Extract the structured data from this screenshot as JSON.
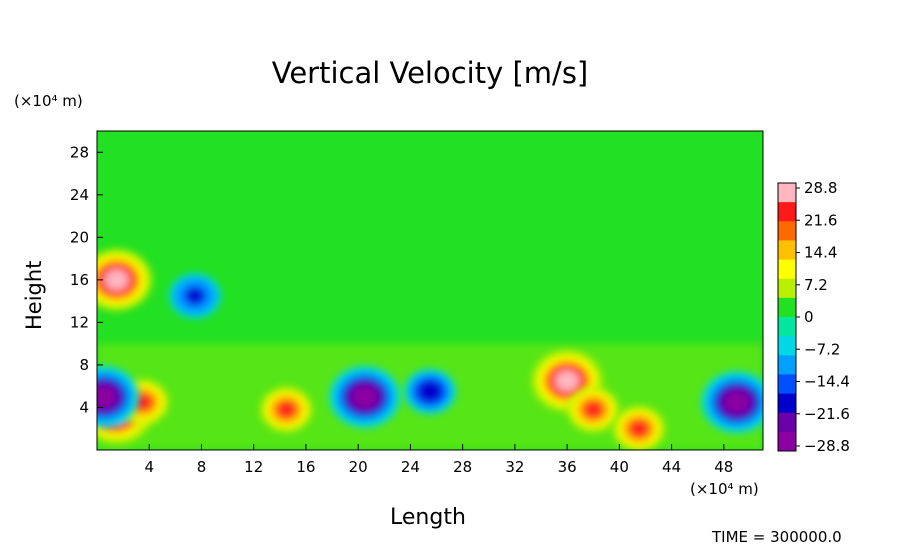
{
  "chart_data": {
    "type": "heatmap",
    "title": "Vertical Velocity [m/s]",
    "xlabel": "Length",
    "ylabel": "Height",
    "x_unit": "(×10⁴ m)",
    "y_unit": "(×10⁴ m)",
    "xlim": [
      0,
      51
    ],
    "ylim": [
      0,
      30
    ],
    "x_ticks": [
      "4",
      "8",
      "12",
      "16",
      "20",
      "24",
      "28",
      "32",
      "36",
      "40",
      "44",
      "48"
    ],
    "y_ticks": [
      "4",
      "8",
      "12",
      "16",
      "20",
      "24",
      "28"
    ],
    "colorbar": {
      "range": [
        -28.8,
        28.8
      ],
      "tick_labels": [
        "28.8",
        "21.6",
        "14.4",
        "7.2",
        "0",
        "−7.2",
        "−14.4",
        "−21.6",
        "−28.8"
      ],
      "colors": [
        "#ffb6c1",
        "#ff1a1a",
        "#ff6a00",
        "#ffc000",
        "#ffff00",
        "#b8f000",
        "#22e022",
        "#00e8a0",
        "#00d8e8",
        "#00a0ff",
        "#0050ff",
        "#0000cc",
        "#6a00a8",
        "#8b00a0"
      ]
    },
    "background_value": 0,
    "features": [
      {
        "x": 1.5,
        "y": 3.5,
        "value": 28.8,
        "label": "updraft"
      },
      {
        "x": 3.5,
        "y": 4.5,
        "value": 26,
        "label": "updraft"
      },
      {
        "x": 1.5,
        "y": 16.0,
        "value": 28.8,
        "label": "updraft"
      },
      {
        "x": 14.5,
        "y": 3.8,
        "value": 26,
        "label": "updraft"
      },
      {
        "x": 36.0,
        "y": 6.5,
        "value": 28.8,
        "label": "updraft"
      },
      {
        "x": 38.0,
        "y": 3.8,
        "value": 26,
        "label": "updraft"
      },
      {
        "x": 41.5,
        "y": 2.0,
        "value": 25,
        "label": "updraft"
      },
      {
        "x": 0.5,
        "y": 5.0,
        "value": -28.8,
        "label": "downdraft"
      },
      {
        "x": 20.5,
        "y": 5.0,
        "value": -28.8,
        "label": "downdraft"
      },
      {
        "x": 25.5,
        "y": 5.5,
        "value": -22,
        "label": "downdraft"
      },
      {
        "x": 49.0,
        "y": 4.5,
        "value": -28.8,
        "label": "downdraft"
      },
      {
        "x": 7.5,
        "y": 14.5,
        "value": -20,
        "label": "downdraft"
      }
    ]
  },
  "footer": {
    "time_label": "TIME = 300000.0"
  }
}
